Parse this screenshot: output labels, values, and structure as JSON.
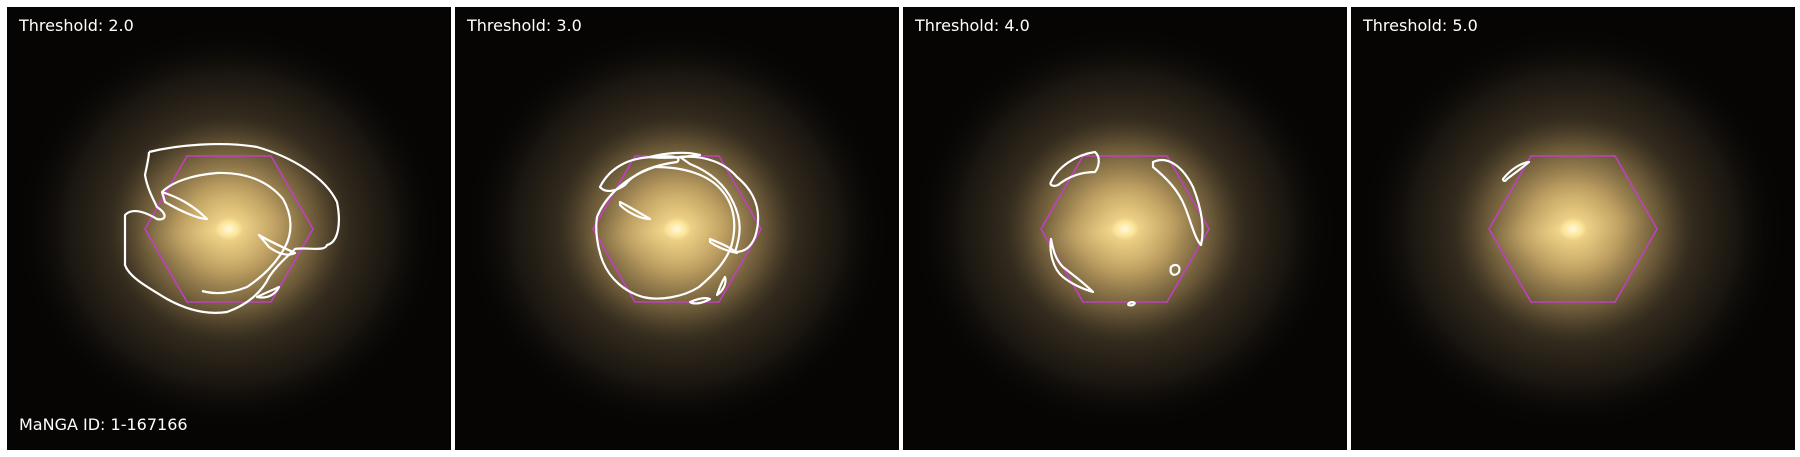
{
  "panels": [
    {
      "threshold_label": "Threshold: 2.0"
    },
    {
      "threshold_label": "Threshold: 3.0"
    },
    {
      "threshold_label": "Threshold: 4.0"
    },
    {
      "threshold_label": "Threshold: 5.0"
    }
  ],
  "galaxy_id_label": "MaNGA ID: 1-167166",
  "colors": {
    "contour": "#ffffff",
    "ifu_hexagon": "#c040c0",
    "background": "#060504",
    "galaxy_core": "#ffe9a0"
  }
}
